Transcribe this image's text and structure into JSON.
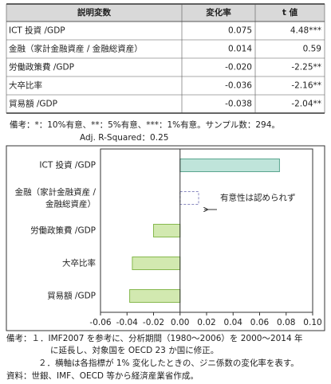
{
  "table": {
    "header": [
      "説明変数",
      "変化率",
      "t 値"
    ],
    "rows": [
      [
        "ICT 投資 /GDP",
        "0.075",
        "4.48***"
      ],
      [
        "金融（家計金融資産 / 金融総資産）",
        "0.014",
        "0.59"
      ],
      [
        "労働政策費 /GDP",
        "-0.020",
        "-2.25**"
      ],
      [
        "大卒比率",
        "-0.036",
        "-2.16**"
      ],
      [
        "貿易額 /GDP",
        "-0.038",
        "-2.04**"
      ]
    ],
    "notes": [
      "備考：*：10%有意、**：5%有意、***：1%有意。サンプル数：294。",
      "Adj. R-Squared：0.25"
    ]
  },
  "chart_data": {
    "type": "hbar",
    "categories": [
      "ICT 投資 /GDP",
      [
        "金融（家計金融資産 /",
        "金融総資産）"
      ],
      "労働政策費 /GDP",
      "大卒比率",
      "貿易額 /GDP"
    ],
    "values": [
      0.075,
      0.014,
      -0.02,
      -0.036,
      -0.038
    ],
    "colors": [
      "#bfe4da",
      "#ffffff",
      "#d2e9b0",
      "#d2e9b0",
      "#d2e9b0"
    ],
    "border_colors": [
      "#5aa58f",
      "#8a8ac0",
      "#86b84e",
      "#86b84e",
      "#86b84e"
    ],
    "border_styles": [
      "solid",
      "dashed",
      "solid",
      "solid",
      "solid"
    ],
    "annotation": "有意性は認められず",
    "xlim": [
      -0.06,
      0.1
    ],
    "xticks": [
      -0.06,
      -0.04,
      -0.02,
      {
        "value": 0,
        "label": "0.00"
      },
      0.02,
      0.04,
      0.06,
      0.08,
      {
        "value": 0.1,
        "label": "0.10"
      }
    ]
  },
  "footnotes": [
    "備考：１．IMF2007 を参考に、分析期間（1980～2006）を 2000～2014 年",
    "に延長し、対象国を OECD 23 か国に修正。",
    "２．横軸は各指標が 1% 変化したときの、ジニ係数の変化率を表す。",
    "資料：世銀、IMF、OECD 等から経済産業省作成。"
  ]
}
